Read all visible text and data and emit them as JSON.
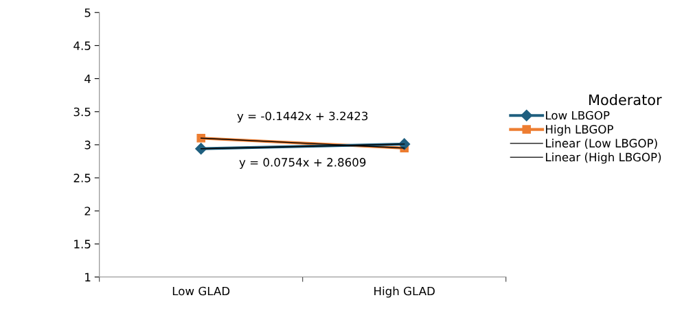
{
  "chart_data": {
    "type": "line",
    "categories": [
      "Low GLAD",
      "High GLAD"
    ],
    "series": [
      {
        "name": "Low LBGOP",
        "color": "#1f5f7f",
        "values": [
          2.94,
          3.01
        ],
        "marker": "diamond"
      },
      {
        "name": "High LBGOP",
        "color": "#ed7d31",
        "values": [
          3.1,
          2.95
        ],
        "marker": "square"
      },
      {
        "name": "Linear (Low LBGOP)",
        "color": "#000000",
        "x": [
          "Low GLAD",
          "High GLAD"
        ],
        "values": [
          2.94,
          3.01
        ],
        "marker": "none"
      },
      {
        "name": "Linear (High LBGOP)",
        "color": "#000000",
        "x": [
          "Low GLAD",
          "High GLAD"
        ],
        "values": [
          3.1,
          2.95
        ],
        "marker": "none"
      }
    ],
    "ylim": [
      1,
      5
    ],
    "yticks": [
      1,
      1.5,
      2,
      2.5,
      3,
      3.5,
      4,
      4.5,
      5
    ],
    "legend": "right",
    "legend_title": "Moderator",
    "grid": false,
    "annotations": [
      "y = -0.1442x + 3.2423",
      "y = 0.0754x + 2.8609"
    ]
  }
}
